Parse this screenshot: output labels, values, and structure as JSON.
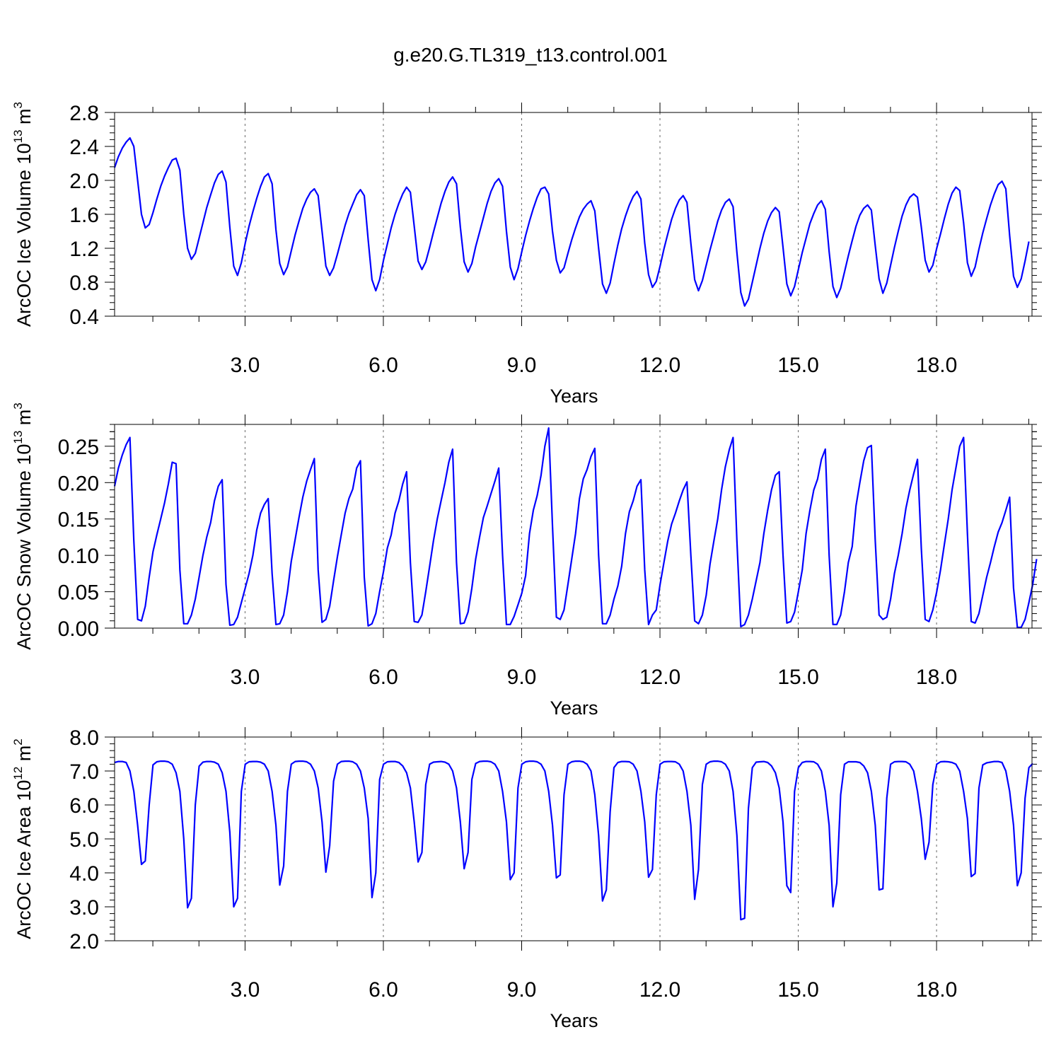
{
  "title": "g.e20.G.TL319_t13.control.001",
  "line_color": "#0000ff",
  "chart_data": [
    {
      "type": "line",
      "title": "g.e20.G.TL319_t13.control.001",
      "xlabel": "Years",
      "ylabel_main": "ArcOC Ice Volume 10",
      "ylabel_exp": "13",
      "ylabel_unit": " m",
      "ylabel_unit_exp": "3",
      "xlim": [
        0.17,
        20.07
      ],
      "ylim": [
        0.4,
        2.8
      ],
      "xticks": [
        3,
        6,
        9,
        12,
        15,
        18
      ],
      "xtick_labels": [
        "3.0",
        "6.0",
        "9.0",
        "12.0",
        "15.0",
        "18.0"
      ],
      "yticks": [
        0.4,
        0.8,
        1.2,
        1.6,
        2.0,
        2.4,
        2.8
      ],
      "ytick_labels": [
        "0.4",
        "0.8",
        "1.2",
        "1.6",
        "2.0",
        "2.4",
        "2.8"
      ],
      "grid": "dashed vertical at x ticks",
      "series": [
        {
          "x_start": 0.17,
          "x_step": 0.08333,
          "values": [
            2.15,
            2.28,
            2.38,
            2.45,
            2.5,
            2.4,
            2.0,
            1.6,
            1.44,
            1.48,
            1.62,
            1.78,
            1.93,
            2.05,
            2.15,
            2.24,
            2.26,
            2.12,
            1.6,
            1.2,
            1.07,
            1.14,
            1.32,
            1.5,
            1.68,
            1.83,
            1.97,
            2.07,
            2.11,
            1.98,
            1.45,
            0.99,
            0.88,
            1.03,
            1.26,
            1.46,
            1.63,
            1.79,
            1.93,
            2.04,
            2.08,
            1.96,
            1.42,
            1.02,
            0.89,
            0.98,
            1.17,
            1.36,
            1.52,
            1.67,
            1.78,
            1.86,
            1.9,
            1.82,
            1.4,
            0.99,
            0.88,
            0.97,
            1.13,
            1.3,
            1.47,
            1.61,
            1.72,
            1.83,
            1.89,
            1.82,
            1.3,
            0.83,
            0.7,
            0.83,
            1.06,
            1.25,
            1.44,
            1.6,
            1.73,
            1.84,
            1.92,
            1.86,
            1.46,
            1.05,
            0.95,
            1.04,
            1.21,
            1.39,
            1.56,
            1.73,
            1.87,
            1.98,
            2.04,
            1.96,
            1.45,
            1.04,
            0.92,
            1.02,
            1.22,
            1.39,
            1.56,
            1.73,
            1.87,
            1.97,
            2.02,
            1.93,
            1.4,
            0.98,
            0.83,
            0.96,
            1.16,
            1.35,
            1.52,
            1.67,
            1.8,
            1.9,
            1.92,
            1.84,
            1.4,
            1.06,
            0.91,
            0.97,
            1.14,
            1.3,
            1.44,
            1.57,
            1.66,
            1.72,
            1.76,
            1.64,
            1.2,
            0.78,
            0.67,
            0.79,
            1.02,
            1.24,
            1.43,
            1.58,
            1.71,
            1.81,
            1.87,
            1.78,
            1.26,
            0.89,
            0.74,
            0.81,
            0.99,
            1.19,
            1.37,
            1.54,
            1.67,
            1.77,
            1.82,
            1.74,
            1.26,
            0.83,
            0.7,
            0.82,
            1.0,
            1.18,
            1.35,
            1.52,
            1.65,
            1.74,
            1.78,
            1.69,
            1.15,
            0.68,
            0.52,
            0.6,
            0.8,
            1.0,
            1.2,
            1.38,
            1.52,
            1.62,
            1.68,
            1.63,
            1.21,
            0.78,
            0.64,
            0.75,
            0.95,
            1.15,
            1.32,
            1.49,
            1.61,
            1.71,
            1.76,
            1.66,
            1.16,
            0.75,
            0.62,
            0.73,
            0.92,
            1.11,
            1.29,
            1.46,
            1.59,
            1.67,
            1.71,
            1.65,
            1.23,
            0.84,
            0.67,
            0.79,
            1.0,
            1.21,
            1.4,
            1.58,
            1.71,
            1.8,
            1.84,
            1.8,
            1.45,
            1.06,
            0.92,
            1.0,
            1.2,
            1.37,
            1.55,
            1.72,
            1.85,
            1.92,
            1.88,
            1.5,
            1.03,
            0.87,
            0.98,
            1.19,
            1.38,
            1.55,
            1.71,
            1.84,
            1.95,
            1.99,
            1.9,
            1.35,
            0.87,
            0.74,
            0.84,
            1.05,
            1.28
          ]
        }
      ]
    },
    {
      "type": "line",
      "xlabel": "Years",
      "ylabel_main": "ArcOC Snow Volume 10",
      "ylabel_exp": "13",
      "ylabel_unit": " m",
      "ylabel_unit_exp": "3",
      "xlim": [
        0.17,
        20.07
      ],
      "ylim": [
        0.0,
        0.28
      ],
      "xticks": [
        3,
        6,
        9,
        12,
        15,
        18
      ],
      "xtick_labels": [
        "3.0",
        "6.0",
        "9.0",
        "12.0",
        "15.0",
        "18.0"
      ],
      "yticks": [
        0.0,
        0.05,
        0.1,
        0.15,
        0.2,
        0.25
      ],
      "ytick_labels": [
        "0.00",
        "0.05",
        "0.10",
        "0.15",
        "0.20",
        "0.25"
      ],
      "grid": "dashed vertical at x ticks",
      "series": [
        {
          "x_start": 0.17,
          "x_step": 0.08333,
          "values": [
            0.195,
            0.22,
            0.238,
            0.252,
            0.262,
            0.12,
            0.012,
            0.01,
            0.03,
            0.07,
            0.105,
            0.128,
            0.15,
            0.172,
            0.198,
            0.228,
            0.226,
            0.08,
            0.006,
            0.006,
            0.018,
            0.04,
            0.07,
            0.1,
            0.125,
            0.145,
            0.175,
            0.195,
            0.204,
            0.06,
            0.004,
            0.005,
            0.015,
            0.035,
            0.055,
            0.075,
            0.1,
            0.135,
            0.158,
            0.17,
            0.178,
            0.075,
            0.005,
            0.006,
            0.018,
            0.05,
            0.092,
            0.122,
            0.152,
            0.18,
            0.202,
            0.218,
            0.233,
            0.08,
            0.008,
            0.012,
            0.03,
            0.065,
            0.098,
            0.128,
            0.158,
            0.178,
            0.191,
            0.22,
            0.23,
            0.07,
            0.003,
            0.006,
            0.02,
            0.05,
            0.078,
            0.11,
            0.128,
            0.158,
            0.175,
            0.198,
            0.215,
            0.09,
            0.009,
            0.008,
            0.018,
            0.05,
            0.085,
            0.12,
            0.15,
            0.175,
            0.2,
            0.228,
            0.246,
            0.09,
            0.006,
            0.007,
            0.022,
            0.055,
            0.095,
            0.125,
            0.152,
            0.168,
            0.185,
            0.202,
            0.22,
            0.1,
            0.005,
            0.005,
            0.016,
            0.032,
            0.048,
            0.072,
            0.13,
            0.162,
            0.182,
            0.21,
            0.25,
            0.275,
            0.14,
            0.015,
            0.012,
            0.025,
            0.06,
            0.095,
            0.13,
            0.178,
            0.205,
            0.218,
            0.236,
            0.247,
            0.1,
            0.006,
            0.006,
            0.018,
            0.04,
            0.058,
            0.085,
            0.13,
            0.16,
            0.175,
            0.195,
            0.204,
            0.08,
            0.005,
            0.018,
            0.025,
            0.06,
            0.09,
            0.12,
            0.143,
            0.158,
            0.175,
            0.19,
            0.201,
            0.1,
            0.01,
            0.006,
            0.018,
            0.045,
            0.088,
            0.12,
            0.15,
            0.19,
            0.222,
            0.245,
            0.262,
            0.12,
            0.002,
            0.005,
            0.018,
            0.04,
            0.065,
            0.09,
            0.13,
            0.162,
            0.19,
            0.21,
            0.215,
            0.1,
            0.007,
            0.009,
            0.022,
            0.05,
            0.08,
            0.13,
            0.162,
            0.19,
            0.205,
            0.232,
            0.246,
            0.1,
            0.005,
            0.005,
            0.018,
            0.05,
            0.09,
            0.112,
            0.168,
            0.2,
            0.23,
            0.248,
            0.251,
            0.12,
            0.018,
            0.012,
            0.015,
            0.04,
            0.075,
            0.1,
            0.13,
            0.165,
            0.19,
            0.212,
            0.232,
            0.11,
            0.012,
            0.009,
            0.025,
            0.05,
            0.08,
            0.115,
            0.15,
            0.19,
            0.22,
            0.25,
            0.262,
            0.13,
            0.009,
            0.007,
            0.02,
            0.045,
            0.07,
            0.09,
            0.112,
            0.132,
            0.145,
            0.162,
            0.18,
            0.055,
            0.001,
            0.001,
            0.012,
            0.035,
            0.06,
            0.095
          ]
        }
      ]
    },
    {
      "type": "line",
      "xlabel": "Years",
      "ylabel_main": "ArcOC Ice Area 10",
      "ylabel_exp": "12",
      "ylabel_unit": " m",
      "ylabel_unit_exp": "2",
      "xlim": [
        0.17,
        20.07
      ],
      "ylim": [
        2.0,
        8.0
      ],
      "xticks": [
        3,
        6,
        9,
        12,
        15,
        18
      ],
      "xtick_labels": [
        "3.0",
        "6.0",
        "9.0",
        "12.0",
        "15.0",
        "18.0"
      ],
      "yticks": [
        2.0,
        3.0,
        4.0,
        5.0,
        6.0,
        7.0,
        8.0
      ],
      "ytick_labels": [
        "2.0",
        "3.0",
        "4.0",
        "5.0",
        "6.0",
        "7.0",
        "8.0"
      ],
      "grid": "dashed vertical at x ticks",
      "series": [
        {
          "x_start": 0.17,
          "x_step": 0.08333,
          "values": [
            7.25,
            7.28,
            7.28,
            7.25,
            7.0,
            6.4,
            5.4,
            4.25,
            4.35,
            6.0,
            7.18,
            7.27,
            7.29,
            7.29,
            7.27,
            7.2,
            6.95,
            6.4,
            5.0,
            2.97,
            3.25,
            6.0,
            7.14,
            7.26,
            7.28,
            7.28,
            7.26,
            7.2,
            6.95,
            6.4,
            5.2,
            3.0,
            3.25,
            6.4,
            7.2,
            7.27,
            7.28,
            7.28,
            7.26,
            7.2,
            7.0,
            6.4,
            5.4,
            3.64,
            4.2,
            6.4,
            7.2,
            7.28,
            7.29,
            7.29,
            7.27,
            7.2,
            7.0,
            6.5,
            5.5,
            4.02,
            4.8,
            6.7,
            7.2,
            7.28,
            7.29,
            7.29,
            7.27,
            7.2,
            7.0,
            6.5,
            5.6,
            3.27,
            4.0,
            6.75,
            7.2,
            7.27,
            7.28,
            7.28,
            7.25,
            7.15,
            6.95,
            6.5,
            5.5,
            4.32,
            4.6,
            6.6,
            7.2,
            7.26,
            7.27,
            7.28,
            7.26,
            7.2,
            7.0,
            6.5,
            5.5,
            4.12,
            4.6,
            6.75,
            7.22,
            7.28,
            7.29,
            7.29,
            7.27,
            7.2,
            7.0,
            6.4,
            5.5,
            3.8,
            4.0,
            6.5,
            7.2,
            7.27,
            7.29,
            7.29,
            7.27,
            7.2,
            7.0,
            6.4,
            5.4,
            3.85,
            3.94,
            6.3,
            7.2,
            7.27,
            7.29,
            7.29,
            7.27,
            7.2,
            7.0,
            6.3,
            5.1,
            3.17,
            3.5,
            5.8,
            7.1,
            7.25,
            7.28,
            7.28,
            7.27,
            7.2,
            7.0,
            6.4,
            5.5,
            3.87,
            4.1,
            6.3,
            7.2,
            7.27,
            7.28,
            7.28,
            7.27,
            7.2,
            7.0,
            6.4,
            5.4,
            3.22,
            4.1,
            6.6,
            7.2,
            7.27,
            7.29,
            7.29,
            7.27,
            7.2,
            7.0,
            6.4,
            5.1,
            2.62,
            2.66,
            5.9,
            7.1,
            7.26,
            7.27,
            7.28,
            7.25,
            7.15,
            6.95,
            6.5,
            5.5,
            3.62,
            3.42,
            6.4,
            7.1,
            7.25,
            7.28,
            7.28,
            7.27,
            7.2,
            7.0,
            6.4,
            5.4,
            3.0,
            3.7,
            6.3,
            7.2,
            7.27,
            7.27,
            7.27,
            7.25,
            7.15,
            6.95,
            6.4,
            5.4,
            3.5,
            3.53,
            6.2,
            7.2,
            7.27,
            7.28,
            7.28,
            7.27,
            7.2,
            7.0,
            6.4,
            5.6,
            4.4,
            4.9,
            6.6,
            7.2,
            7.27,
            7.28,
            7.27,
            7.25,
            7.2,
            7.0,
            6.4,
            5.6,
            3.89,
            3.98,
            6.5,
            7.18,
            7.24,
            7.26,
            7.28,
            7.28,
            7.25,
            7.0,
            6.4,
            5.4,
            3.62,
            4.0,
            6.2,
            7.1,
            7.22
          ]
        }
      ]
    }
  ]
}
